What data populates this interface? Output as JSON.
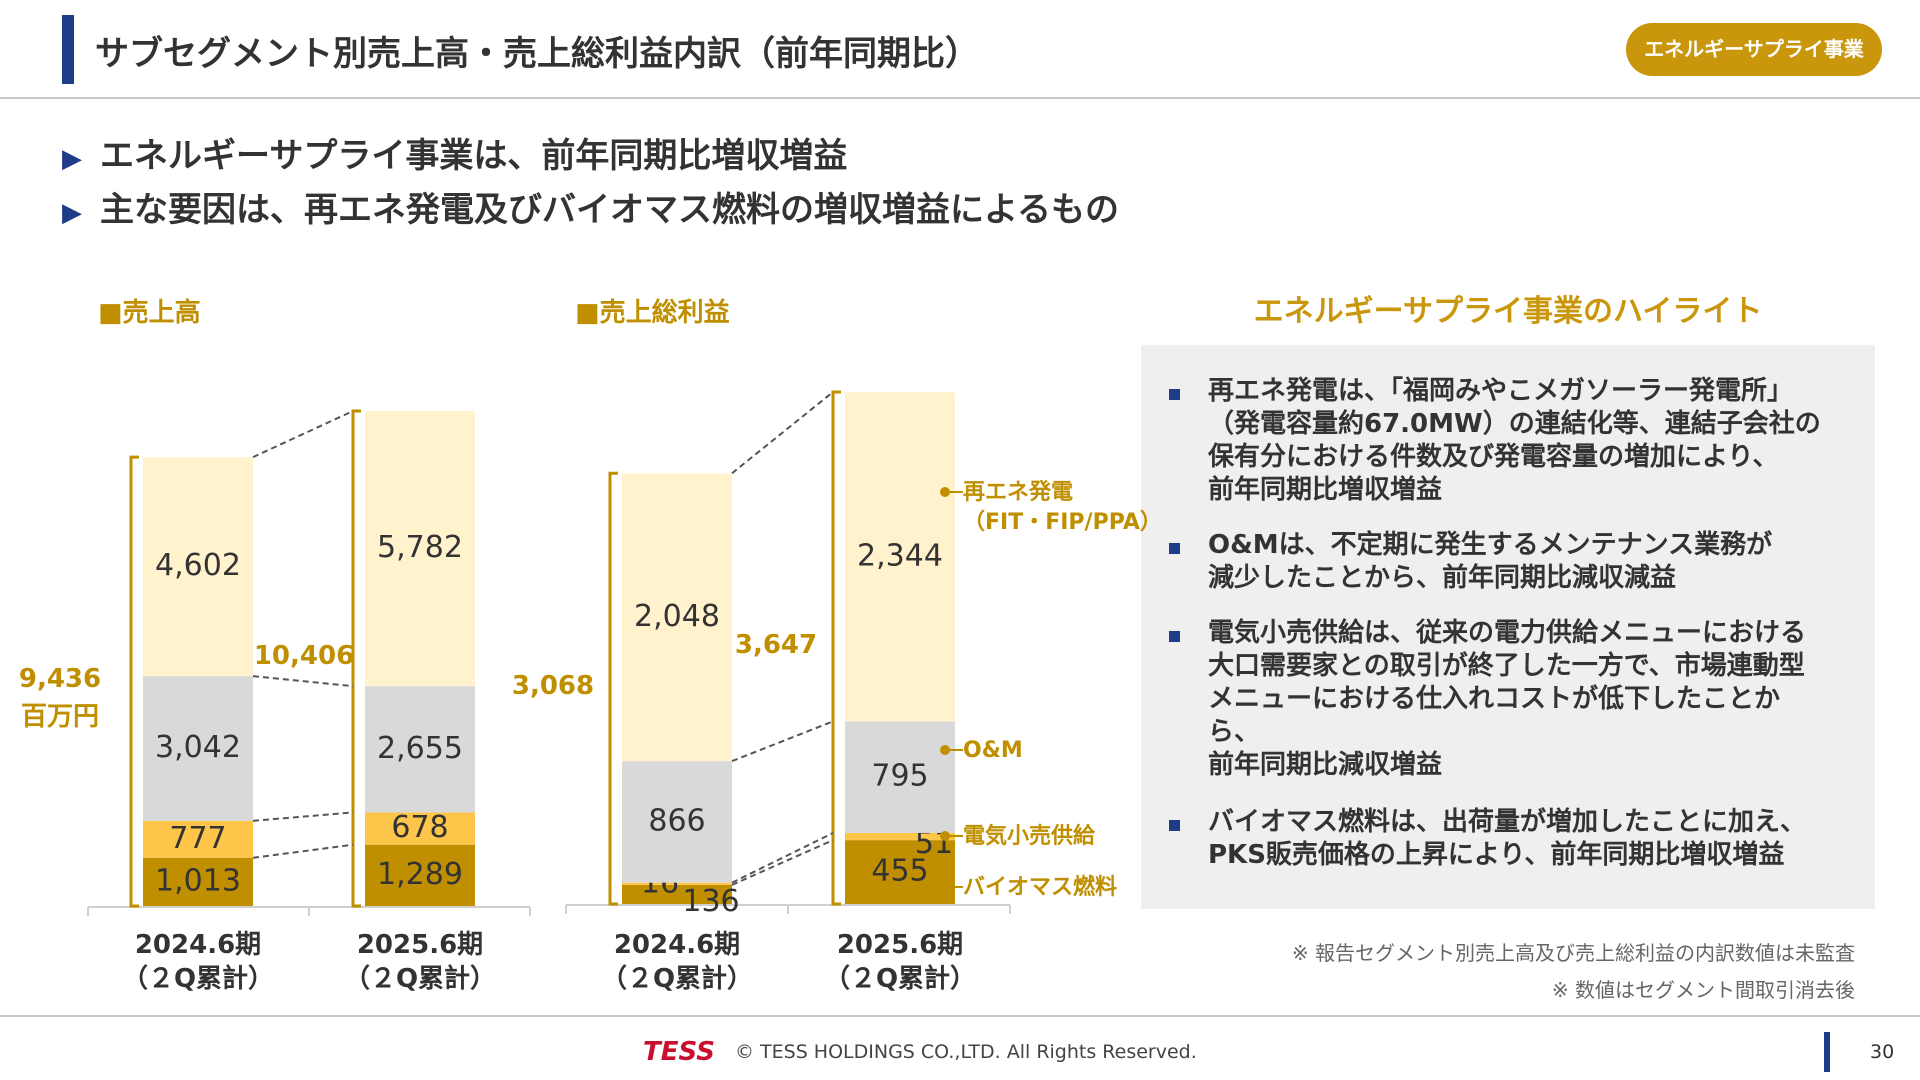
{
  "header": {
    "title": "サブセグメント別売上高・売上総利益内訳（前年同期比）",
    "badge": "エネルギーサプライ事業"
  },
  "bullets": [
    "エネルギーサプライ事業は、前年同期比増収増益",
    "主な要因は、再エネ発電及びバイオマス燃料の増収増益によるもの"
  ],
  "chart_data": [
    {
      "type": "stacked-bar",
      "title": "■売上高",
      "unit": "百万円",
      "categories": [
        "2024.6期\n（２Q累計）",
        "2025.6期\n（２Q累計）"
      ],
      "totals": [
        9436,
        10406
      ],
      "total_labels": [
        "9,436",
        "10,406"
      ],
      "series": [
        {
          "name": "バイオマス燃料",
          "color": "#bf8f00",
          "values": [
            1013,
            1289
          ],
          "value_labels": [
            "1,013",
            "1,289"
          ]
        },
        {
          "name": "電気小売供給",
          "color": "#fdc54a",
          "values": [
            777,
            678
          ],
          "value_labels": [
            "777",
            "678"
          ]
        },
        {
          "name": "O&M",
          "color": "#d9d9d9",
          "values": [
            3042,
            2655
          ],
          "value_labels": [
            "3,042",
            "2,655"
          ]
        },
        {
          "name": "再エネ発電\n（FIT・FIP/PPA）",
          "color": "#fff2cc",
          "values": [
            4602,
            5782
          ],
          "value_labels": [
            "4,602",
            "5,782"
          ]
        }
      ]
    },
    {
      "type": "stacked-bar",
      "title": "■売上総利益",
      "categories": [
        "2024.6期\n（２Q累計）",
        "2025.6期\n（２Q累計）"
      ],
      "totals": [
        3068,
        3647
      ],
      "total_labels": [
        "3,068",
        "3,647"
      ],
      "series": [
        {
          "name": "バイオマス燃料",
          "color": "#bf8f00",
          "values": [
            136,
            455
          ]
        },
        {
          "name": "電気小売供給",
          "color": "#fdc54a",
          "values": [
            16,
            51
          ]
        },
        {
          "name": "O&M",
          "color": "#d9d9d9",
          "values": [
            866,
            795
          ]
        },
        {
          "name": "再エネ発電\n（FIT・FIP/PPA）",
          "color": "#fff2cc",
          "values": [
            2048,
            2344
          ],
          "value_labels": [
            "2,048",
            "2,344"
          ]
        }
      ]
    }
  ],
  "highlight": {
    "title": "エネルギーサプライ事業のハイライト",
    "items": [
      "再エネ発電は、「福岡みやこメガソーラー発電所」\n（発電容量約67.0MW）の連結化等、連結子会社の\n保有分における件数及び発電容量の増加により、\n前年同期比増収増益",
      "O&Mは、不定期に発生するメンテナンス業務が\n減少したことから、前年同期比減収減益",
      "電気小売供給は、従来の電力供給メニューにおける\n大口需要家との取引が終了した一方で、市場連動型\nメニューにおける仕入れコストが低下したことか\nら、\n前年同期比減収増益",
      "バイオマス燃料は、出荷量が増加したことに加え、\nPKS販売価格の上昇により、前年同期比増収増益"
    ]
  },
  "notes": [
    "※ 報告セグメント別売上高及び売上総利益の内訳数値は未監査",
    "※ 数値はセグメント間取引消去後"
  ],
  "footer": {
    "logo": "TESS",
    "copyright": "© TESS HOLDINGS CO.,LTD. All Rights Reserved.",
    "page": "30"
  }
}
